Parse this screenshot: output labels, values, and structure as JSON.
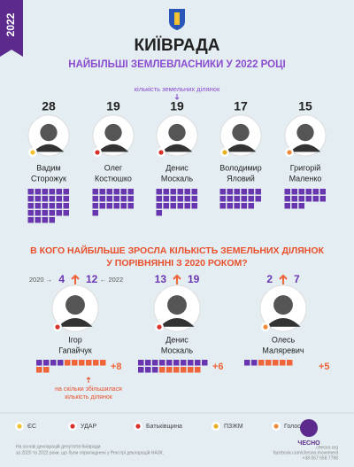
{
  "tab": "2022",
  "header": {
    "title": "КИЇВРАДА",
    "subtitle": "НАЙБІЛЬШІ ЗЕМЛЕВЛАСНИКИ У 2022 РОЦІ",
    "note": "кількість земельних ділянок"
  },
  "top": [
    {
      "name": [
        "Вадим",
        "Сторожук"
      ],
      "count": 28
    },
    {
      "name": [
        "Олег",
        "Костюшко"
      ],
      "count": 19
    },
    {
      "name": [
        "Денис",
        "Москаль"
      ],
      "count": 19
    },
    {
      "name": [
        "Володимир",
        "Яловий"
      ],
      "count": 17
    },
    {
      "name": [
        "Григорій",
        "Маленко"
      ],
      "count": 15
    }
  ],
  "growth": {
    "title": [
      "В КОГО НАЙБІЛЬШЕ ЗРОСЛА КІЛЬКІСТЬ ЗЕМЕЛЬНИХ ДІЛЯНОК",
      "У ПОРІВНЯННІ З 2020 РОКОМ?"
    ],
    "from_label": "2020 →",
    "to_label": "← 2022",
    "note": [
      "на скільки збільшилася",
      "кількість ділянок"
    ],
    "people": [
      {
        "name": [
          "Ігор",
          "Гапайчук"
        ],
        "from": 4,
        "to": 12,
        "increase": 8,
        "increase_label": "+8"
      },
      {
        "name": [
          "Денис",
          "Москаль"
        ],
        "from": 13,
        "to": 19,
        "increase": 6,
        "increase_label": "+6"
      },
      {
        "name": [
          "Олесь",
          "Маляревич"
        ],
        "from": 2,
        "to": 7,
        "increase": 5,
        "increase_label": "+5"
      }
    ]
  },
  "legend": [
    "ЄС",
    "УДАР",
    "Батьківщина",
    "ПЗЖМ",
    "Голос"
  ],
  "footer": {
    "source": [
      "На основі декларацій депутатів Київради",
      "за 2020 та 2022 роки, що були оприлюднені у Реєстрі декларацій НАЗК."
    ],
    "logo": "ЧЕСНО",
    "contacts": [
      "chesno.org",
      "facebook.com/chesno.movement",
      "+38 067 658 7798"
    ]
  }
}
